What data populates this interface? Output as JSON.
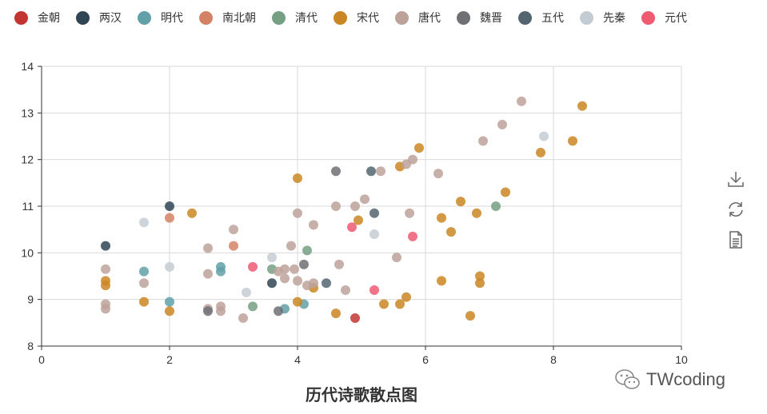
{
  "chart_data": {
    "type": "scatter",
    "title": "历代诗歌散点图",
    "xlabel": "",
    "ylabel": "",
    "xlim": [
      0,
      10
    ],
    "ylim": [
      8,
      14
    ],
    "x_ticks": [
      0,
      2,
      4,
      6,
      8,
      10
    ],
    "y_ticks": [
      8,
      9,
      10,
      11,
      12,
      13,
      14
    ],
    "grid": true,
    "legend_position": "top-left",
    "series": [
      {
        "name": "金朝",
        "color": "#c23531",
        "points": [
          [
            4.9,
            8.6
          ]
        ]
      },
      {
        "name": "两汉",
        "color": "#2f4554",
        "points": [
          [
            1.0,
            10.15
          ],
          [
            2.0,
            11.0
          ],
          [
            3.6,
            9.35
          ]
        ]
      },
      {
        "name": "明代",
        "color": "#61a0a8",
        "points": [
          [
            1.6,
            9.6
          ],
          [
            2.0,
            8.95
          ],
          [
            2.8,
            9.7
          ],
          [
            2.8,
            9.6
          ],
          [
            3.8,
            8.8
          ],
          [
            4.1,
            8.9
          ]
        ]
      },
      {
        "name": "南北朝",
        "color": "#d48265",
        "points": [
          [
            2.0,
            10.75
          ],
          [
            3.0,
            10.15
          ]
        ]
      },
      {
        "name": "清代",
        "color": "#749f83",
        "points": [
          [
            3.3,
            8.85
          ],
          [
            3.6,
            9.65
          ],
          [
            4.15,
            10.05
          ],
          [
            7.1,
            11.0
          ]
        ]
      },
      {
        "name": "宋代",
        "color": "#ca8622",
        "points": [
          [
            1.0,
            9.4
          ],
          [
            1.0,
            9.3
          ],
          [
            1.6,
            8.95
          ],
          [
            2.0,
            8.75
          ],
          [
            2.35,
            10.85
          ],
          [
            4.0,
            8.95
          ],
          [
            4.0,
            11.6
          ],
          [
            4.25,
            9.25
          ],
          [
            4.6,
            8.7
          ],
          [
            4.95,
            10.7
          ],
          [
            5.35,
            8.9
          ],
          [
            5.6,
            8.9
          ],
          [
            5.6,
            11.85
          ],
          [
            5.7,
            9.05
          ],
          [
            5.9,
            12.25
          ],
          [
            6.25,
            10.75
          ],
          [
            6.25,
            9.4
          ],
          [
            6.4,
            10.45
          ],
          [
            6.55,
            11.1
          ],
          [
            6.7,
            8.65
          ],
          [
            6.8,
            10.85
          ],
          [
            6.85,
            9.35
          ],
          [
            6.85,
            9.5
          ],
          [
            7.25,
            11.3
          ],
          [
            7.8,
            12.15
          ],
          [
            8.3,
            12.4
          ],
          [
            8.45,
            13.15
          ]
        ]
      },
      {
        "name": "唐代",
        "color": "#bda29a",
        "points": [
          [
            1.0,
            9.65
          ],
          [
            1.0,
            8.9
          ],
          [
            1.0,
            8.8
          ],
          [
            1.6,
            9.35
          ],
          [
            2.6,
            10.1
          ],
          [
            2.6,
            9.55
          ],
          [
            2.6,
            8.8
          ],
          [
            2.8,
            8.85
          ],
          [
            2.8,
            8.75
          ],
          [
            3.0,
            10.5
          ],
          [
            3.15,
            8.6
          ],
          [
            3.7,
            9.6
          ],
          [
            3.8,
            9.45
          ],
          [
            3.8,
            9.65
          ],
          [
            3.9,
            10.15
          ],
          [
            3.95,
            9.65
          ],
          [
            4.0,
            10.85
          ],
          [
            4.0,
            9.4
          ],
          [
            4.15,
            9.3
          ],
          [
            4.25,
            10.6
          ],
          [
            4.25,
            9.35
          ],
          [
            4.6,
            11.0
          ],
          [
            4.65,
            9.75
          ],
          [
            4.75,
            9.2
          ],
          [
            4.9,
            11.0
          ],
          [
            5.05,
            11.15
          ],
          [
            5.3,
            11.75
          ],
          [
            5.55,
            9.9
          ],
          [
            5.7,
            11.9
          ],
          [
            5.75,
            10.85
          ],
          [
            5.8,
            12.0
          ],
          [
            6.2,
            11.7
          ],
          [
            6.9,
            12.4
          ],
          [
            7.2,
            12.75
          ],
          [
            7.5,
            13.25
          ]
        ]
      },
      {
        "name": "魏晋",
        "color": "#6e7074",
        "points": [
          [
            2.6,
            8.75
          ],
          [
            3.7,
            8.75
          ],
          [
            4.1,
            9.75
          ],
          [
            4.6,
            11.75
          ]
        ]
      },
      {
        "name": "五代",
        "color": "#546570",
        "points": [
          [
            4.45,
            9.35
          ],
          [
            5.15,
            11.75
          ],
          [
            5.2,
            10.85
          ]
        ]
      },
      {
        "name": "先秦",
        "color": "#c4ccd3",
        "points": [
          [
            1.6,
            10.65
          ],
          [
            2.0,
            9.7
          ],
          [
            3.2,
            9.15
          ],
          [
            3.6,
            9.9
          ],
          [
            5.2,
            10.4
          ],
          [
            7.85,
            12.5
          ]
        ]
      },
      {
        "name": "元代",
        "color": "#f05b72",
        "points": [
          [
            3.3,
            9.7
          ],
          [
            4.85,
            10.55
          ],
          [
            5.2,
            9.2
          ],
          [
            5.8,
            10.35
          ]
        ]
      }
    ]
  },
  "toolbox": {
    "download_icon": "download-icon",
    "refresh_icon": "refresh-icon",
    "dataview_icon": "data-view-icon"
  },
  "watermark": {
    "text": "TWcoding",
    "icon": "wechat-icon"
  }
}
